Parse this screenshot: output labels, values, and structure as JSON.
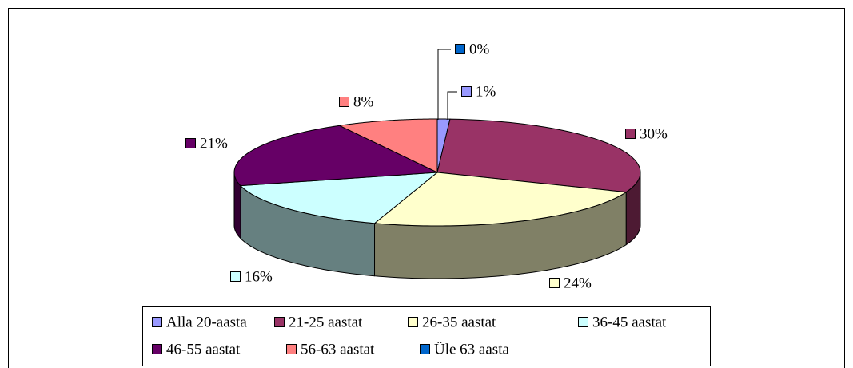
{
  "chart_data": {
    "type": "pie",
    "categories": [
      "Alla 20-aasta",
      "21-25 aastat",
      "26-35 aastat",
      "36-45 aastat",
      "46-55 aastat",
      "56-63 aastat",
      "Üle 63 aasta"
    ],
    "values": [
      1,
      30,
      24,
      16,
      21,
      8,
      0
    ],
    "value_labels": [
      "1%",
      "30%",
      "24%",
      "16%",
      "21%",
      "8%",
      "0%"
    ],
    "colors": [
      "#9999ff",
      "#993366",
      "#ffffcc",
      "#ccffff",
      "#660066",
      "#ff8080",
      "#0066cc"
    ]
  }
}
